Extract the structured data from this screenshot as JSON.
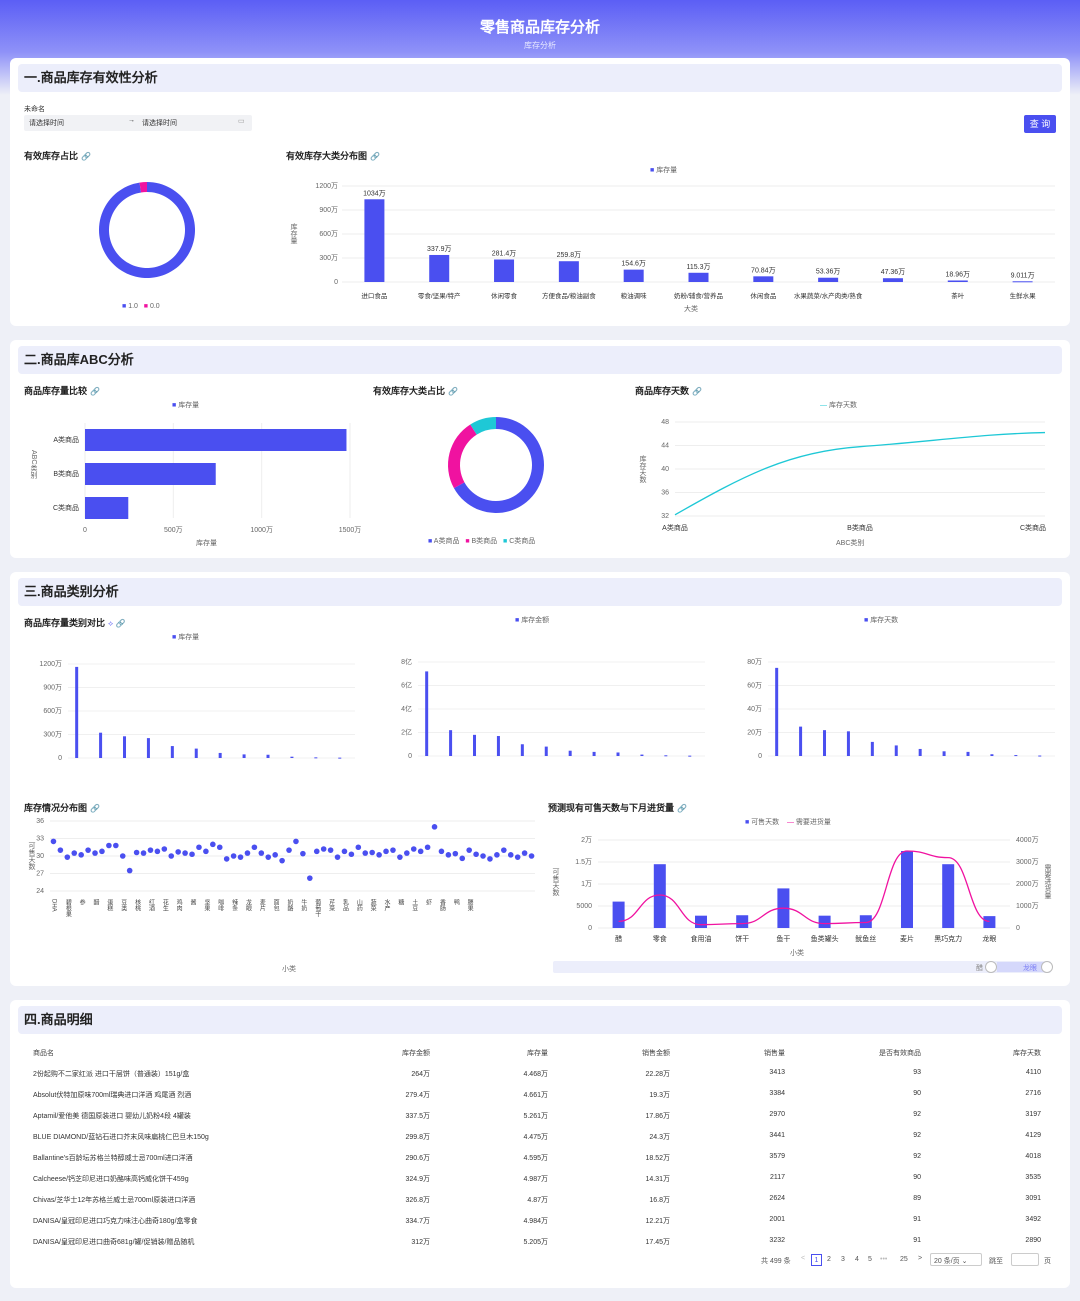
{
  "header": {
    "title": "零售商品库存分析",
    "subtitle": "库存分析"
  },
  "s1": {
    "title": "一.商品库存有效性分析",
    "filter_label": "未命名",
    "date_start": "请选择时间",
    "date_end": "请选择时间",
    "query": "查 询",
    "donut_title": "有效库存占比",
    "donut_legend": [
      "1.0",
      "0.0"
    ],
    "bar_title": "有效库存大类分布图",
    "bar_legend": "库存量",
    "bar_ylabel": "库存量",
    "bar_xlabel": "大类"
  },
  "s2": {
    "title": "二.商品库ABC分析",
    "hbar_title": "商品库存量比较",
    "hbar_legend": "库存量",
    "hbar_ylabel": "ABC类别",
    "hbar_xlabel": "库存量",
    "donut_title": "有效库存大类占比",
    "donut_legend": [
      "A类商品",
      "B类商品",
      "C类商品"
    ],
    "line_title": "商品库存天数",
    "line_legend": "库存天数",
    "line_ylabel": "库存天数",
    "line_xlabel": "ABC类别"
  },
  "s3": {
    "title": "三.商品类别分析",
    "cmp_title": "商品库存量类别对比",
    "leg1": "库存量",
    "leg2": "库存金额",
    "leg3": "库存天数",
    "scatter_title": "库存情况分布图",
    "scatter_ylabel": "可售天数",
    "scatter_xlabel": "小类",
    "combo_title": "预测现有可售天数与下月进货量",
    "combo_leg1": "可售天数",
    "combo_leg2": "需要进货量",
    "combo_ylabel": "可售天数",
    "combo_y2label": "需要进货量",
    "combo_xlabel": "小类",
    "zoom_start": "醋",
    "zoom_end": "龙眼"
  },
  "s4": {
    "title": "四.商品明细",
    "columns": [
      "商品名",
      "库存金额",
      "库存量",
      "销售金额",
      "销售量",
      "是否有效商品",
      "库存天数"
    ],
    "rows": [
      [
        "2份起购不二家红派 进口干层饼（普通装）151g/盒",
        "264万",
        "4.468万",
        "22.28万",
        "3413",
        "93",
        "4110"
      ],
      [
        "Absolut伏特加原味700ml瑞典进口洋酒 鸡尾酒 烈酒",
        "279.4万",
        "4.661万",
        "19.3万",
        "3384",
        "90",
        "2716"
      ],
      [
        "Aptamil/爱他美 德国原装进口 婴幼儿奶粉4段 4罐装",
        "337.5万",
        "5.261万",
        "17.86万",
        "2970",
        "92",
        "3197"
      ],
      [
        "BLUE DIAMOND/蓝钻石进口芥末风味扁桃仁巴旦木150g",
        "299.8万",
        "4.475万",
        "24.3万",
        "3441",
        "92",
        "4129"
      ],
      [
        "Ballantine's百龄坛苏格兰特醇威士忌700ml进口洋酒",
        "290.6万",
        "4.595万",
        "18.52万",
        "3579",
        "92",
        "4018"
      ],
      [
        "Calcheese/钙芝印尼进口奶酪味高钙威化饼干459g",
        "324.9万",
        "4.987万",
        "14.31万",
        "2117",
        "90",
        "3535"
      ],
      [
        "Chivas/芝华士12年苏格兰威士忌700ml原装进口洋酒",
        "326.8万",
        "4.87万",
        "16.8万",
        "2624",
        "89",
        "3091"
      ],
      [
        "DANISA/皇冠印尼进口巧克力味注心曲奇180g/盒零食",
        "334.7万",
        "4.984万",
        "12.21万",
        "2001",
        "91",
        "3492"
      ],
      [
        "DANISA/皇冠印尼进口曲奇681g/罐/促销装/赠品随机",
        "312万",
        "5.205万",
        "17.45万",
        "3232",
        "91",
        "2890"
      ]
    ],
    "pager": {
      "total": "共 499 条",
      "pages": [
        "1",
        "2",
        "3",
        "4",
        "5",
        "25"
      ],
      "ellipsis": "•••",
      "size": "20 条/页",
      "jump": "跳至",
      "page_unit": "页"
    }
  },
  "colors": {
    "primary": "#4a4ff0",
    "pink": "#f012a0",
    "cyan": "#1ec8d6"
  },
  "chart_data": [
    {
      "type": "pie",
      "title": "有效库存占比",
      "labels": [
        "1.0",
        "0.0"
      ],
      "values": [
        97.5,
        2.5
      ],
      "donut": true,
      "colors": [
        "#4a4ff0",
        "#f012a0"
      ]
    },
    {
      "type": "bar",
      "title": "有效库存大类分布图",
      "xlabel": "大类",
      "ylabel": "库存量",
      "categories": [
        "进口食品",
        "零食/坚果/特产",
        "休闲零食",
        "方便食品/粮油副食",
        "粮油调味",
        "奶粉/辅食/营养品",
        "休闲食品",
        "水果蔬菜/水产肉类/熟食",
        "",
        "茶叶",
        "生鲜水果"
      ],
      "values": [
        1034,
        337.9,
        281.4,
        259.8,
        154.6,
        115.3,
        70.84,
        53.36,
        47.36,
        18.96,
        9.011
      ],
      "value_labels": [
        "1034万",
        "337.9万",
        "281.4万",
        "259.8万",
        "154.6万",
        "115.3万",
        "70.84万",
        "53.36万",
        "47.36万",
        "18.96万",
        "9.011万"
      ],
      "yticks": [
        "0",
        "300万",
        "600万",
        "900万",
        "1200万"
      ],
      "ylim": [
        0,
        1200
      ],
      "legend": "库存量"
    },
    {
      "type": "bar",
      "orientation": "horizontal",
      "title": "商品库存量比较",
      "categories": [
        "A类商品",
        "B类商品",
        "C类商品"
      ],
      "values": [
        1480,
        740,
        245
      ],
      "xticks": [
        "0",
        "500万",
        "1000万",
        "1500万"
      ],
      "xlim": [
        0,
        1500
      ],
      "xlabel": "库存量",
      "ylabel": "ABC类别"
    },
    {
      "type": "pie",
      "title": "有效库存大类占比",
      "donut": true,
      "labels": [
        "A类商品",
        "B类商品",
        "C类商品"
      ],
      "values": [
        67,
        24,
        9
      ],
      "colors": [
        "#4a4ff0",
        "#f012a0",
        "#1ec8d6"
      ]
    },
    {
      "type": "line",
      "title": "商品库存天数",
      "categories": [
        "A类商品",
        "B类商品",
        "C类商品"
      ],
      "values": [
        32.2,
        43.8,
        46.2
      ],
      "ylim": [
        32,
        48
      ],
      "yticks": [
        "32",
        "36",
        "40",
        "44",
        "48"
      ],
      "xlabel": "ABC类别",
      "ylabel": "库存天数"
    },
    {
      "type": "bar",
      "title": "库存量",
      "values": [
        1260,
        350,
        300,
        275,
        165,
        130,
        70,
        50,
        45,
        18,
        9,
        5
      ],
      "yticks": [
        "0",
        "300万",
        "600万",
        "900万",
        "1200万"
      ],
      "ylim": [
        0,
        1300
      ]
    },
    {
      "type": "bar",
      "title": "库存金额",
      "values": [
        7.2,
        2.2,
        1.8,
        1.7,
        1.0,
        0.8,
        0.45,
        0.35,
        0.3,
        0.12,
        0.06,
        0.03
      ],
      "yticks": [
        "0",
        "2亿",
        "4亿",
        "6亿",
        "8亿"
      ],
      "ylim": [
        0,
        8
      ]
    },
    {
      "type": "bar",
      "title": "库存天数",
      "values": [
        75,
        25,
        22,
        21,
        12,
        9,
        6,
        4,
        3.5,
        1.5,
        0.8,
        0.4
      ],
      "yticks": [
        "0",
        "20万",
        "40万",
        "60万",
        "80万"
      ],
      "ylim": [
        0,
        80
      ]
    },
    {
      "type": "scatter",
      "title": "库存情况分布图",
      "xlabel": "小类",
      "ylabel": "可售天数",
      "ylim": [
        24,
        36
      ],
      "yticks": [
        "24",
        "27",
        "30",
        "33",
        "36"
      ],
      "categories": [
        "DHA",
        "巴旦木",
        "碧根果",
        "饼干",
        "参",
        "茶",
        "醋",
        "蛋卷",
        "蛋糕",
        "豆干",
        "豆类",
        "海苔",
        "核桃",
        "红枣",
        "红酒",
        "花茶",
        "花生",
        "黄油",
        "鸡肉",
        "姜",
        "酱",
        "酱油",
        "坚果",
        "酒",
        "咖啡",
        "烤肠",
        "辣条",
        "梨",
        "龙眼",
        "绿茶",
        "麦片",
        "蜜饯",
        "面包",
        "奶粉",
        "奶酪",
        "牛肉",
        "牛奶",
        "啤酒",
        "葡萄干",
        "巧克力",
        "芹菜",
        "肉干",
        "乳品",
        "沙拉",
        "山药",
        "食用油",
        "蔬菜",
        "薯片",
        "水产",
        "酸奶",
        "糖",
        "甜点",
        "土豆",
        "威化",
        "虾",
        "鲜花",
        "香肠",
        "杏仁",
        "鸭",
        "洋酒",
        "腰果",
        "饮料",
        "鱼",
        "玉米",
        "枣",
        "芝士",
        "猪肉",
        "粽子",
        "坚果礼盒",
        "其它"
      ],
      "values": [
        32.5,
        31,
        29.8,
        30.5,
        30.2,
        31,
        30.5,
        30.8,
        31.8,
        31.8,
        30,
        27.5,
        30.6,
        30.5,
        31,
        30.8,
        31.2,
        30,
        30.7,
        30.5,
        30.3,
        31.5,
        30.8,
        32,
        31.5,
        29.5,
        30,
        29.8,
        30.5,
        31.5,
        30.5,
        29.8,
        30.2,
        29.2,
        31,
        32.5,
        30.4,
        26.2,
        30.8,
        31.2,
        31,
        29.8,
        30.8,
        30.3,
        31.5,
        30.5,
        30.6,
        30.2,
        30.8,
        31,
        29.8,
        30.5,
        31.2,
        30.8,
        31.5,
        35,
        30.8,
        30.2,
        30.4,
        29.6,
        31,
        30.3,
        30,
        29.5,
        30.2,
        31,
        30.2,
        29.8,
        30.5,
        30
      ]
    },
    {
      "type": "bar",
      "title": "预测现有可售天数与下月进货量",
      "categories": [
        "醋",
        "零食",
        "食用油",
        "饼干",
        "鱼干",
        "鱼类罐头",
        "鱿鱼丝",
        "麦片",
        "黑巧克力",
        "龙眼"
      ],
      "series": [
        {
          "name": "可售天数",
          "type": "bar",
          "values": [
            6000,
            14500,
            2800,
            2900,
            9000,
            2800,
            2900,
            17500,
            14500,
            2700
          ],
          "ylim": [
            0,
            20000
          ],
          "yticks": [
            "0",
            "5000",
            "1万",
            "1.5万",
            "2万"
          ]
        },
        {
          "name": "需要进货量",
          "type": "line",
          "values": [
            300,
            1500,
            150,
            200,
            900,
            200,
            250,
            3500,
            3200,
            300
          ],
          "ylim": [
            0,
            4000
          ],
          "yticks": [
            "0",
            "1000万",
            "2000万",
            "3000万",
            "4000万"
          ]
        }
      ]
    }
  ]
}
